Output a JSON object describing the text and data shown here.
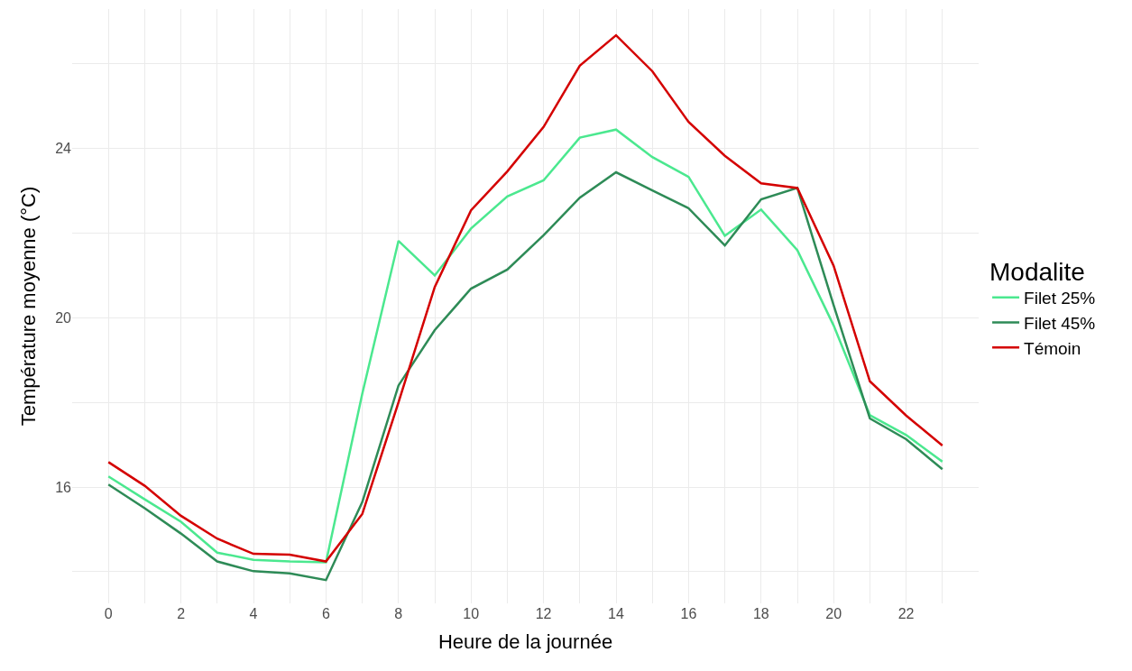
{
  "chart_data": {
    "type": "line",
    "xlabel": "Heure de la journée",
    "ylabel": "Température moyenne (°C)",
    "legend_title": "Modalite",
    "legend": "right",
    "grid": true,
    "x": [
      0,
      1,
      2,
      3,
      4,
      5,
      6,
      7,
      8,
      9,
      10,
      11,
      12,
      13,
      14,
      15,
      16,
      17,
      18,
      19,
      20,
      21,
      22,
      23
    ],
    "xlim": [
      -1,
      24
    ],
    "xticks": [
      0,
      {
        "value": 1,
        "label": null
      },
      2,
      {
        "value": 3,
        "label": null
      },
      4,
      {
        "value": 5,
        "label": null
      },
      6,
      {
        "value": 7,
        "label": null
      },
      8,
      {
        "value": 9,
        "label": null
      },
      10,
      {
        "value": 11,
        "label": null
      },
      12,
      {
        "value": 13,
        "label": null
      },
      14,
      {
        "value": 15,
        "label": null
      },
      16,
      {
        "value": 17,
        "label": null
      },
      18,
      {
        "value": 19,
        "label": null
      },
      20,
      {
        "value": 21,
        "label": null
      },
      22,
      {
        "value": 23,
        "label": null
      }
    ],
    "ylim": [
      13.25,
      27.3
    ],
    "yticks": [
      {
        "value": 14,
        "label": null
      },
      16,
      {
        "value": 18,
        "label": null
      },
      20,
      {
        "value": 22,
        "label": null
      },
      24,
      {
        "value": 26,
        "label": null
      }
    ],
    "series": [
      {
        "name": "Filet 25%",
        "color": "#4be88f",
        "values": [
          16.25,
          15.71,
          15.18,
          14.45,
          14.28,
          14.24,
          14.22,
          18.2,
          21.82,
          21.0,
          22.11,
          22.87,
          23.25,
          24.26,
          24.45,
          23.8,
          23.33,
          21.94,
          22.56,
          21.6,
          19.82,
          17.7,
          17.23,
          16.6
        ]
      },
      {
        "name": "Filet 45%",
        "color": "#2e8b57",
        "values": [
          16.06,
          15.5,
          14.9,
          14.24,
          14.01,
          13.96,
          13.8,
          15.64,
          18.4,
          19.71,
          20.69,
          21.14,
          21.95,
          22.84,
          23.44,
          23.01,
          22.59,
          21.71,
          22.8,
          23.07,
          20.3,
          17.62,
          17.13,
          16.42
        ]
      },
      {
        "name": "Témoin",
        "color": "#d40000",
        "values": [
          16.59,
          16.03,
          15.32,
          14.78,
          14.42,
          14.4,
          14.24,
          15.36,
          18.0,
          20.73,
          22.54,
          23.46,
          24.51,
          25.96,
          26.68,
          25.83,
          24.63,
          23.83,
          23.18,
          23.07,
          21.23,
          18.5,
          17.69,
          16.98
        ]
      }
    ]
  }
}
